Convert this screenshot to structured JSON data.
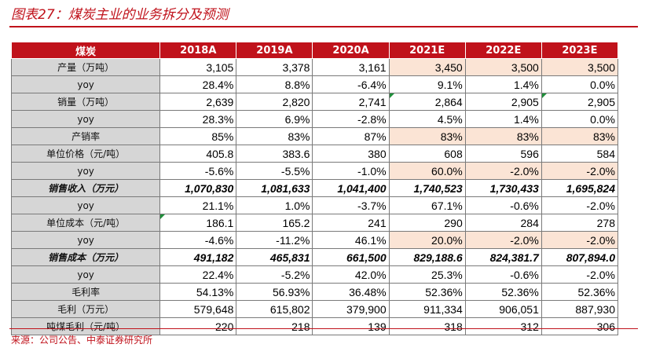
{
  "title": "图表27：煤炭主业的业务拆分及预测",
  "source": "来源：公司公告、中泰证券研究所",
  "colors": {
    "accent": "#c0121b",
    "label_bg": "#d6d6d6",
    "highlight_bg": "#fbe4d5",
    "comment_marker": "#1f8f3a"
  },
  "table": {
    "header": [
      "煤炭",
      "2018A",
      "2019A",
      "2020A",
      "2021E",
      "2022E",
      "2023E"
    ],
    "rows": [
      {
        "label": "产量（万吨）",
        "values": [
          "3,105",
          "3,378",
          "3,161",
          "3,450",
          "3,500",
          "3,500"
        ],
        "bold": false,
        "highlight": [
          3,
          4,
          5
        ],
        "marker": []
      },
      {
        "label": "yoy",
        "values": [
          "28.4%",
          "8.8%",
          "-6.4%",
          "9.1%",
          "1.4%",
          "0.0%"
        ],
        "bold": false,
        "highlight": [],
        "marker": []
      },
      {
        "label": "销量（万吨）",
        "values": [
          "2,639",
          "2,820",
          "2,741",
          "2,864",
          "2,905",
          "2,905"
        ],
        "bold": false,
        "highlight": [],
        "marker": [
          3,
          5
        ]
      },
      {
        "label": "yoy",
        "values": [
          "28.3%",
          "6.9%",
          "-2.8%",
          "4.5%",
          "1.4%",
          "0.0%"
        ],
        "bold": false,
        "highlight": [],
        "marker": []
      },
      {
        "label": "产销率",
        "values": [
          "85%",
          "83%",
          "87%",
          "83%",
          "83%",
          "83%"
        ],
        "bold": false,
        "highlight": [
          3,
          4,
          5
        ],
        "marker": []
      },
      {
        "label": "单位价格（元/吨）",
        "values": [
          "405.8",
          "383.6",
          "380",
          "608",
          "596",
          "584"
        ],
        "bold": false,
        "highlight": [],
        "marker": []
      },
      {
        "label": "yoy",
        "values": [
          "-5.6%",
          "-5.5%",
          "-1.0%",
          "60.0%",
          "-2.0%",
          "-2.0%"
        ],
        "bold": false,
        "highlight": [
          3,
          4,
          5
        ],
        "marker": []
      },
      {
        "label": "销售收入（万元）",
        "values": [
          "1,070,830",
          "1,081,633",
          "1,041,400",
          "1,740,523",
          "1,730,433",
          "1,695,824"
        ],
        "bold": true,
        "highlight": [],
        "marker": []
      },
      {
        "label": "yoy",
        "values": [
          "21.1%",
          "1.0%",
          "-3.7%",
          "67.1%",
          "-0.6%",
          "-2.0%"
        ],
        "bold": false,
        "highlight": [],
        "marker": []
      },
      {
        "label": "单位成本（元/吨）",
        "values": [
          "186.1",
          "165.2",
          "241",
          "290",
          "284",
          "278"
        ],
        "bold": false,
        "highlight": [],
        "marker": [
          0
        ]
      },
      {
        "label": "yoy",
        "values": [
          "-4.6%",
          "-11.2%",
          "46.1%",
          "20.0%",
          "-2.0%",
          "-2.0%"
        ],
        "bold": false,
        "highlight": [
          3,
          4,
          5
        ],
        "marker": []
      },
      {
        "label": "销售成本（万元）",
        "values": [
          "491,182",
          "465,831",
          "661,500",
          "829,188.6",
          "824,381.7",
          "807,894.0"
        ],
        "bold": true,
        "highlight": [],
        "marker": []
      },
      {
        "label": "yoy",
        "values": [
          "22.4%",
          "-5.2%",
          "42.0%",
          "25.3%",
          "-0.6%",
          "-2.0%"
        ],
        "bold": false,
        "highlight": [],
        "marker": []
      },
      {
        "label": "毛利率",
        "values": [
          "54.13%",
          "56.93%",
          "36.48%",
          "52.36%",
          "52.36%",
          "52.36%"
        ],
        "bold": false,
        "highlight": [],
        "marker": []
      },
      {
        "label": "毛利（万元）",
        "values": [
          "579,648",
          "615,802",
          "379,900",
          "911,334",
          "906,051",
          "887,930"
        ],
        "bold": false,
        "highlight": [],
        "marker": []
      },
      {
        "label": "吨煤毛利（元/吨）",
        "values": [
          "220",
          "218",
          "139",
          "318",
          "312",
          "306"
        ],
        "bold": false,
        "highlight": [],
        "marker": []
      }
    ]
  }
}
